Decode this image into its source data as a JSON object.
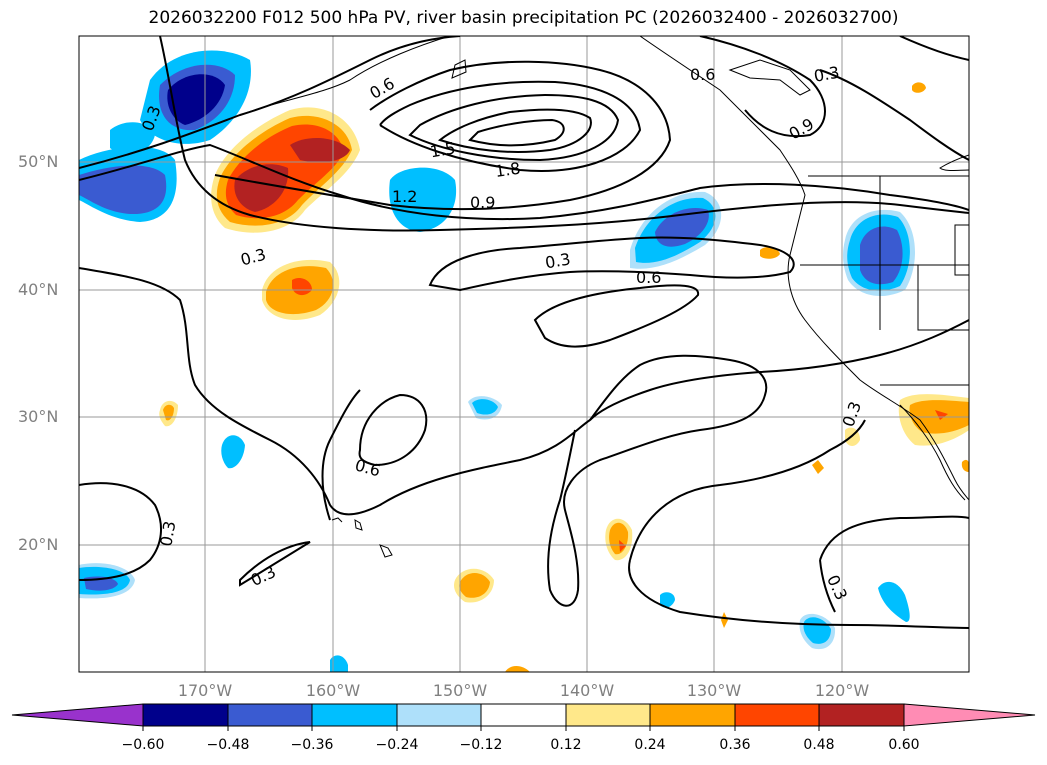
{
  "title": "2026032200 F012 500 hPa PV, river basin precipitation PC (2026032400 - 2026032700)",
  "lat_labels": [
    "50°N",
    "40°N",
    "30°N",
    "20°N"
  ],
  "lon_labels": [
    "170°W",
    "160°W",
    "150°W",
    "140°W",
    "130°W",
    "120°W"
  ],
  "contour_labels": [
    "0.3",
    "0.6",
    "0.9",
    "1.2",
    "1.5",
    "1.8"
  ],
  "colorbar": {
    "ticks": [
      "−0.60",
      "−0.48",
      "−0.36",
      "−0.24",
      "−0.12",
      "0.12",
      "0.24",
      "0.36",
      "0.48",
      "0.60"
    ],
    "colors": [
      "#9932cc",
      "#00008b",
      "#3a5bd1",
      "#00bfff",
      "#aee0fa",
      "#ffffff",
      "#ffe88a",
      "#ffa500",
      "#ff4500",
      "#b22222",
      "#ff8cb4"
    ]
  }
}
